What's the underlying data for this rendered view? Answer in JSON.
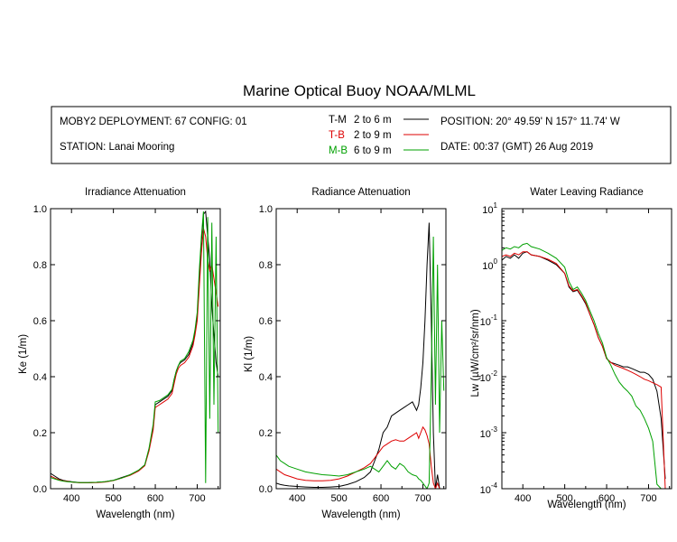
{
  "title": "Marine Optical Buoy NOAA/MLML",
  "info": {
    "deployment": "MOBY2 DEPLOYMENT: 67 CONFIG: 01",
    "station": "STATION: Lanai Mooring",
    "position": "POSITION: 20° 49.59' N   157° 11.74' W",
    "date": "DATE: 00:37 (GMT) 26 Aug 2019"
  },
  "legend": [
    {
      "code": "T-M",
      "range": "2 to 6  m",
      "color": "#000000"
    },
    {
      "code": "T-B",
      "range": "2 to 9  m",
      "color": "#dd0000"
    },
    {
      "code": "M-B",
      "range": "6 to 9  m",
      "color": "#00a000"
    }
  ],
  "chart_data": [
    {
      "type": "line",
      "title": "Irradiance Attenuation",
      "xlabel": "Wavelength (nm)",
      "ylabel": "Ke  (1/m)",
      "xlim": [
        350,
        755
      ],
      "ylim": [
        0,
        1
      ],
      "xticks": [
        400,
        500,
        600,
        700
      ],
      "xticklabels": [
        "400",
        "500",
        "600",
        "700"
      ],
      "yticks": [
        0,
        0.2,
        0.4,
        0.6,
        0.8,
        1.0
      ],
      "yticklabels": [
        "0.0",
        "0.2",
        "0.4",
        "0.6",
        "0.8",
        "1.0"
      ],
      "yscale": "linear",
      "x": [
        350,
        360,
        370,
        380,
        390,
        400,
        420,
        440,
        460,
        480,
        500,
        520,
        540,
        560,
        575,
        585,
        595,
        600,
        610,
        620,
        630,
        640,
        645,
        650,
        655,
        660,
        670,
        680,
        690,
        695,
        700,
        705,
        710,
        715,
        720,
        725,
        730,
        735,
        740,
        745,
        750
      ],
      "series": [
        {
          "name": "T-M",
          "color": "#000000",
          "values": [
            0.055,
            0.045,
            0.035,
            0.03,
            0.027,
            0.025,
            0.022,
            0.022,
            0.023,
            0.025,
            0.03,
            0.04,
            0.05,
            0.065,
            0.085,
            0.14,
            0.22,
            0.3,
            0.31,
            0.32,
            0.33,
            0.35,
            0.39,
            0.42,
            0.44,
            0.45,
            0.46,
            0.48,
            0.52,
            0.56,
            0.62,
            0.75,
            0.88,
            0.98,
            0.99,
            0.9,
            0.82,
            0.65,
            0.55,
            0.45,
            0.4
          ]
        },
        {
          "name": "T-B",
          "color": "#dd0000",
          "values": [
            0.045,
            0.038,
            0.032,
            0.028,
            0.026,
            0.024,
            0.021,
            0.021,
            0.022,
            0.024,
            0.029,
            0.038,
            0.048,
            0.063,
            0.082,
            0.135,
            0.21,
            0.29,
            0.3,
            0.31,
            0.32,
            0.34,
            0.375,
            0.41,
            0.43,
            0.44,
            0.45,
            0.47,
            0.51,
            0.55,
            0.6,
            0.72,
            0.84,
            0.93,
            0.9,
            0.82,
            0.78,
            0.8,
            0.75,
            0.7,
            0.65
          ]
        },
        {
          "name": "M-B",
          "color": "#00a000",
          "values": [
            0.04,
            0.035,
            0.03,
            0.027,
            0.025,
            0.024,
            0.022,
            0.022,
            0.023,
            0.025,
            0.03,
            0.038,
            0.05,
            0.066,
            0.085,
            0.145,
            0.23,
            0.31,
            0.315,
            0.325,
            0.335,
            0.355,
            0.39,
            0.42,
            0.44,
            0.455,
            0.465,
            0.49,
            0.53,
            0.57,
            0.63,
            0.78,
            0.9,
            0.99,
            0.02,
            0.97,
            0.25,
            0.95,
            0.3,
            0.9,
            0.2
          ]
        }
      ]
    },
    {
      "type": "line",
      "title": "Radiance Attenuation",
      "xlabel": "Wavelength (nm)",
      "ylabel": "Kl  (1/m)",
      "xlim": [
        350,
        755
      ],
      "ylim": [
        0,
        1
      ],
      "xticks": [
        400,
        500,
        600,
        700
      ],
      "xticklabels": [
        "400",
        "500",
        "600",
        "700"
      ],
      "yticks": [
        0,
        0.2,
        0.4,
        0.6,
        0.8,
        1.0
      ],
      "yticklabels": [
        "0.0",
        "0.2",
        "0.4",
        "0.6",
        "0.8",
        "1.0"
      ],
      "yscale": "linear",
      "x": [
        350,
        360,
        370,
        380,
        400,
        420,
        440,
        460,
        480,
        500,
        520,
        540,
        560,
        575,
        585,
        595,
        605,
        615,
        625,
        635,
        645,
        655,
        665,
        675,
        685,
        690,
        695,
        700,
        705,
        710,
        715,
        720,
        725,
        730,
        735,
        740,
        745,
        750
      ],
      "series": [
        {
          "name": "T-M",
          "color": "#000000",
          "values": [
            0.02,
            0.015,
            0.012,
            0.01,
            0.008,
            0.006,
            0.005,
            0.005,
            0.006,
            0.008,
            0.015,
            0.025,
            0.04,
            0.06,
            0.1,
            0.14,
            0.2,
            0.22,
            0.26,
            0.27,
            0.28,
            0.29,
            0.3,
            0.31,
            0.28,
            0.3,
            0.36,
            0.45,
            0.6,
            0.8,
            0.95,
            0.6,
            0.2,
            0.0,
            0.05,
            0.0,
            0.0,
            0.0
          ]
        },
        {
          "name": "T-B",
          "color": "#dd0000",
          "values": [
            0.07,
            0.06,
            0.05,
            0.045,
            0.035,
            0.03,
            0.028,
            0.028,
            0.03,
            0.035,
            0.045,
            0.06,
            0.075,
            0.09,
            0.11,
            0.13,
            0.15,
            0.16,
            0.17,
            0.175,
            0.17,
            0.17,
            0.18,
            0.19,
            0.2,
            0.18,
            0.2,
            0.22,
            0.21,
            0.19,
            0.16,
            0.08,
            0.02,
            0.0,
            0.02,
            0.0,
            0.0,
            0.0
          ]
        },
        {
          "name": "M-B",
          "color": "#00a000",
          "values": [
            0.12,
            0.1,
            0.09,
            0.08,
            0.07,
            0.06,
            0.055,
            0.05,
            0.048,
            0.045,
            0.05,
            0.06,
            0.07,
            0.08,
            0.07,
            0.06,
            0.08,
            0.1,
            0.08,
            0.07,
            0.09,
            0.08,
            0.06,
            0.05,
            0.045,
            0.035,
            0.03,
            0.02,
            0.01,
            0.0,
            0.02,
            0.4,
            0.9,
            0.3,
            0.8,
            0.2,
            0.6,
            0.35
          ]
        }
      ]
    },
    {
      "type": "line",
      "title": "Water Leaving Radiance",
      "xlabel": "Wavelength (nm)",
      "ylabel": "Lw  (µW/cm²/sr/nm)",
      "xlim": [
        350,
        755
      ],
      "ylim": [
        0.0001,
        10
      ],
      "yscale": "log",
      "xticks": [
        400,
        500,
        600,
        700
      ],
      "xticklabels": [
        "400",
        "500",
        "600",
        "700"
      ],
      "yticks": [
        0.0001,
        0.001,
        0.01,
        0.1,
        1,
        10
      ],
      "yticklabels": [
        {
          "base": "10",
          "exp": "-4"
        },
        {
          "base": "10",
          "exp": "-3"
        },
        {
          "base": "10",
          "exp": "-2"
        },
        {
          "base": "10",
          "exp": "-1"
        },
        {
          "base": "10",
          "exp": "0"
        },
        {
          "base": "10",
          "exp": "1"
        }
      ],
      "x": [
        350,
        360,
        370,
        380,
        390,
        400,
        410,
        420,
        440,
        460,
        480,
        500,
        510,
        520,
        530,
        540,
        550,
        560,
        570,
        580,
        590,
        600,
        610,
        620,
        630,
        640,
        650,
        660,
        670,
        680,
        690,
        700,
        710,
        720,
        730,
        740
      ],
      "series": [
        {
          "name": "T-M",
          "color": "#000000",
          "values": [
            1.2,
            1.4,
            1.3,
            1.5,
            1.3,
            1.6,
            1.7,
            1.5,
            1.4,
            1.2,
            1.0,
            0.7,
            0.4,
            0.33,
            0.35,
            0.27,
            0.2,
            0.13,
            0.085,
            0.05,
            0.035,
            0.021,
            0.018,
            0.017,
            0.016,
            0.015,
            0.015,
            0.014,
            0.013,
            0.012,
            0.012,
            0.011,
            0.009,
            0.0055,
            0.0018,
            0.00015
          ]
        },
        {
          "name": "T-B",
          "color": "#dd0000",
          "values": [
            1.4,
            1.5,
            1.4,
            1.6,
            1.5,
            1.7,
            1.7,
            1.5,
            1.4,
            1.25,
            1.05,
            0.7,
            0.42,
            0.34,
            0.36,
            0.28,
            0.21,
            0.13,
            0.085,
            0.05,
            0.035,
            0.021,
            0.018,
            0.016,
            0.015,
            0.014,
            0.013,
            0.012,
            0.011,
            0.01,
            0.009,
            0.0085,
            0.0078,
            0.0072,
            0.0065,
            0.0001
          ]
        },
        {
          "name": "M-B",
          "color": "#00a000",
          "values": [
            1.8,
            2.0,
            1.9,
            2.1,
            2.0,
            2.3,
            2.4,
            2.1,
            1.9,
            1.6,
            1.3,
            0.9,
            0.5,
            0.36,
            0.4,
            0.31,
            0.23,
            0.15,
            0.1,
            0.06,
            0.04,
            0.022,
            0.016,
            0.011,
            0.008,
            0.0065,
            0.0055,
            0.0045,
            0.003,
            0.0025,
            0.0018,
            0.0012,
            0.0007,
            0.00012,
            0.0001,
            0.0001
          ]
        }
      ]
    }
  ]
}
